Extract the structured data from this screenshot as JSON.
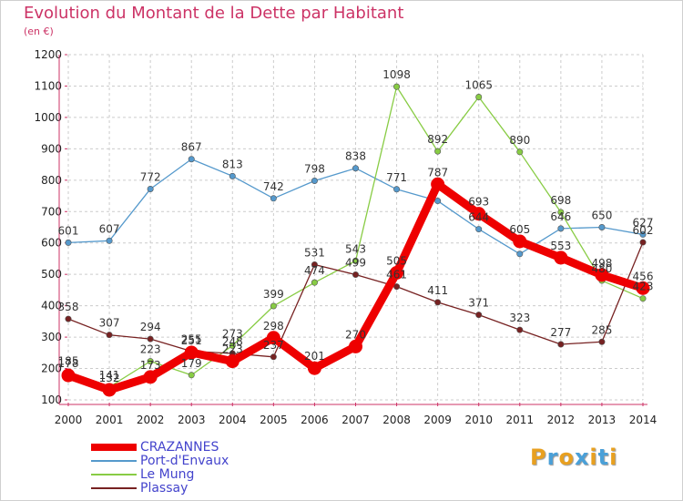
{
  "title": "Evolution du Montant de la Dette par Habitant",
  "subtitle": "(en €)",
  "logo": {
    "text": "Proxiti",
    "colors": [
      "#e8a020",
      "#4aa0d8",
      "#e8a020",
      "#4aa0d8",
      "#e8a020",
      "#4aa0d8",
      "#e8a020"
    ]
  },
  "chart_data": {
    "type": "line",
    "x": [
      "2000",
      "2001",
      "2002",
      "2003",
      "2004",
      "2005",
      "2006",
      "2007",
      "2008",
      "2009",
      "2010",
      "2011",
      "2012",
      "2013",
      "2014"
    ],
    "ylim": [
      100,
      1200
    ],
    "yticks": [
      100,
      200,
      300,
      400,
      500,
      600,
      700,
      800,
      900,
      1000,
      1100,
      1200
    ],
    "grid": true,
    "series": [
      {
        "name": "CRAZANNES",
        "color": "#ee0000",
        "highlight": true,
        "values": [
          178,
          132,
          173,
          251,
          223,
          298,
          201,
          270,
          505,
          787,
          693,
          605,
          553,
          498,
          456
        ],
        "labels": [
          "178",
          "132",
          "173",
          "251",
          "223",
          "298",
          "201",
          "270",
          "505",
          "787",
          "693",
          "605",
          "553",
          "498",
          "456"
        ]
      },
      {
        "name": "Port-d'Envaux",
        "color": "#5599cc",
        "values": [
          601,
          607,
          772,
          867,
          813,
          742,
          798,
          838,
          771,
          734,
          644,
          565,
          646,
          650,
          627
        ],
        "labels": [
          "601",
          "607",
          "772",
          "867",
          "813",
          "742",
          "798",
          "838",
          "771",
          "",
          "644",
          "",
          "646",
          "650",
          "627"
        ]
      },
      {
        "name": "Le Mung",
        "color": "#88cc44",
        "values": [
          185,
          141,
          223,
          179,
          273,
          399,
          474,
          543,
          1098,
          892,
          1065,
          890,
          698,
          480,
          423
        ],
        "labels": [
          "185",
          "141",
          "223",
          "179",
          "273",
          "399",
          "474",
          "543",
          "1098",
          "892",
          "1065",
          "890",
          "698",
          "480",
          "423"
        ]
      },
      {
        "name": "Plassay",
        "color": "#772222",
        "values": [
          358,
          307,
          294,
          255,
          248,
          237,
          531,
          499,
          461,
          411,
          371,
          323,
          277,
          285,
          602
        ],
        "labels": [
          "358",
          "307",
          "294",
          "255",
          "248",
          "237",
          "531",
          "499",
          "461",
          "411",
          "371",
          "323",
          "277",
          "285",
          "602"
        ]
      }
    ]
  }
}
